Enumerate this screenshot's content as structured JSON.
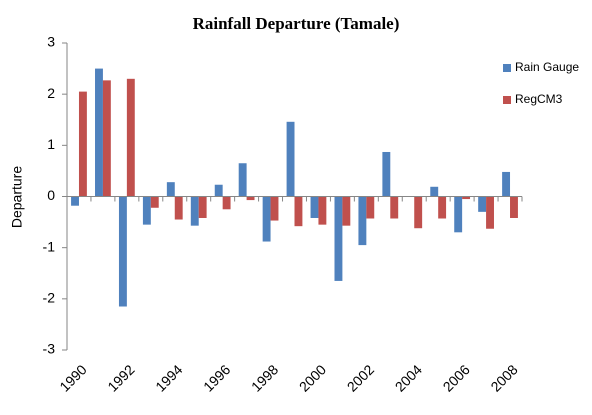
{
  "chart_data": {
    "type": "bar",
    "title": "Rainfall Departure (Tamale)",
    "y_label": "Departure",
    "categories": [
      "1990",
      null,
      "1992",
      null,
      "1994",
      null,
      "1996",
      null,
      "1998",
      null,
      "2000",
      null,
      "2002",
      null,
      "2004",
      null,
      "2006",
      null,
      "2008"
    ],
    "series": [
      {
        "name": "Rain Gauge",
        "color": "#4f81bd",
        "values": [
          -0.18,
          2.5,
          -2.15,
          -0.55,
          0.28,
          -0.57,
          0.23,
          0.65,
          -0.88,
          1.46,
          -0.42,
          -1.65,
          -0.95,
          0.87,
          0,
          0.19,
          -0.7,
          -0.3,
          0.48
        ]
      },
      {
        "name": "RegCM3",
        "color": "#c0504d",
        "values": [
          2.05,
          2.27,
          2.3,
          -0.22,
          -0.45,
          -0.42,
          -0.25,
          -0.07,
          -0.47,
          -0.58,
          -0.55,
          -0.57,
          -0.43,
          -0.43,
          -0.62,
          -0.43,
          -0.05,
          -0.63,
          -0.42
        ]
      }
    ],
    "ylim": [
      -3,
      3
    ],
    "yticks": [
      -3,
      -2,
      -1,
      0,
      1,
      2,
      3
    ],
    "legend": "right"
  }
}
